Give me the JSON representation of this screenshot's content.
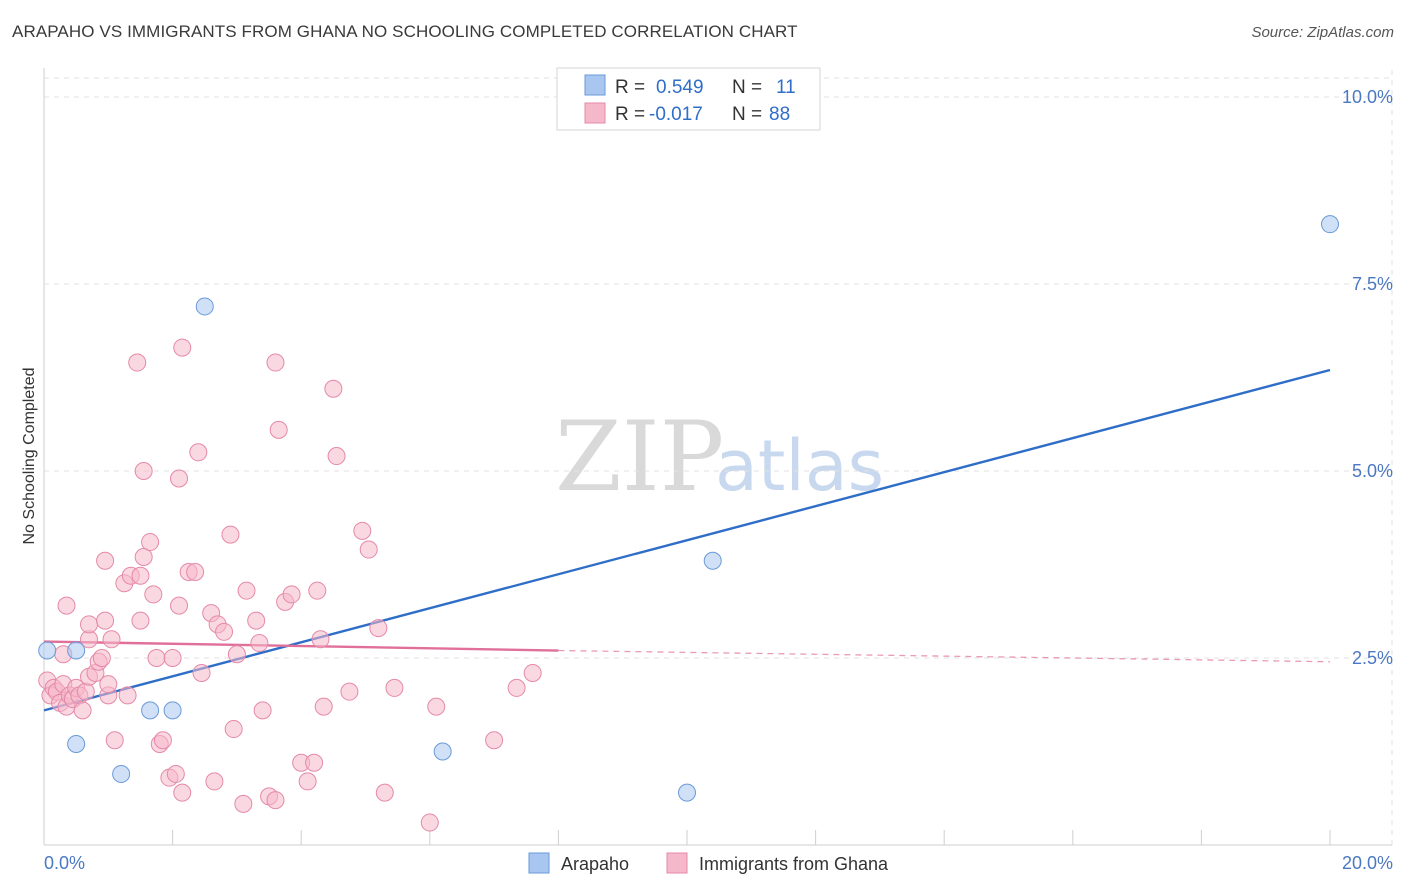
{
  "header": {
    "title": "ARAPAHO VS IMMIGRANTS FROM GHANA NO SCHOOLING COMPLETED CORRELATION CHART",
    "source": "Source: ZipAtlas.com"
  },
  "watermark": {
    "zip": "ZIP",
    "atlas": "atlas"
  },
  "legend_top": {
    "rows": [
      {
        "r_label": "R =",
        "r_value": "0.549",
        "n_label": "N =",
        "n_value": "11",
        "color": "#a9c6f0"
      },
      {
        "r_label": "R =",
        "r_value": "-0.017",
        "n_label": "N =",
        "n_value": "88",
        "color": "#f5b8cb"
      }
    ]
  },
  "legend_bottom": {
    "items": [
      "Arapaho",
      "Immigrants from Ghana"
    ]
  },
  "chart_data": {
    "type": "scatter",
    "title": "ARAPAHO VS IMMIGRANTS FROM GHANA NO SCHOOLING COMPLETED CORRELATION CHART",
    "xlabel": "",
    "ylabel": "No Schooling Completed",
    "xlim": [
      0,
      20
    ],
    "ylim": [
      0,
      10.5
    ],
    "x_tick_labels": [
      "0.0%",
      "20.0%"
    ],
    "y_ticks": [
      2.5,
      5.0,
      7.5,
      10.0
    ],
    "y_tick_labels": [
      "2.5%",
      "5.0%",
      "7.5%",
      "10.0%"
    ],
    "grid": true,
    "series": [
      {
        "name": "Arapaho",
        "color": "#a9c6f0",
        "stroke": "#6a9ad8",
        "trend_color": "#2f6ec8",
        "r": 0.549,
        "n": 11,
        "trend": {
          "x0": 0,
          "y0": 1.8,
          "x1": 20,
          "y1": 6.35
        },
        "points": [
          [
            0.05,
            2.6
          ],
          [
            0.5,
            2.6
          ],
          [
            0.5,
            1.35
          ],
          [
            1.2,
            0.95
          ],
          [
            1.65,
            1.8
          ],
          [
            2.0,
            1.8
          ],
          [
            2.5,
            7.2
          ],
          [
            6.2,
            1.25
          ],
          [
            10.4,
            3.8
          ],
          [
            10.0,
            0.7
          ],
          [
            20.0,
            8.3
          ]
        ]
      },
      {
        "name": "Immigrants from Ghana",
        "color": "#f5b8cb",
        "stroke": "#e589a8",
        "trend_color": "#e0709a",
        "r": -0.017,
        "n": 88,
        "trend": {
          "x0": 0,
          "y0": 2.72,
          "x1": 8,
          "y1": 2.6
        },
        "trend_dashed": {
          "x0": 8,
          "y0": 2.6,
          "x1": 20,
          "y1": 2.45
        },
        "points": [
          [
            0.05,
            2.2
          ],
          [
            0.1,
            2.0
          ],
          [
            0.15,
            2.1
          ],
          [
            0.2,
            2.05
          ],
          [
            0.25,
            1.9
          ],
          [
            0.3,
            2.15
          ],
          [
            0.35,
            1.85
          ],
          [
            0.4,
            2.0
          ],
          [
            0.45,
            1.95
          ],
          [
            0.5,
            2.1
          ],
          [
            0.55,
            2.0
          ],
          [
            0.6,
            1.8
          ],
          [
            0.65,
            2.05
          ],
          [
            0.7,
            2.25
          ],
          [
            0.8,
            2.3
          ],
          [
            0.85,
            2.45
          ],
          [
            0.9,
            2.5
          ],
          [
            1.0,
            2.0
          ],
          [
            1.05,
            2.75
          ],
          [
            1.1,
            1.4
          ],
          [
            0.35,
            3.2
          ],
          [
            0.7,
            2.75
          ],
          [
            0.7,
            2.95
          ],
          [
            0.95,
            3.0
          ],
          [
            0.95,
            3.8
          ],
          [
            1.25,
            3.5
          ],
          [
            1.3,
            2.0
          ],
          [
            1.35,
            3.6
          ],
          [
            1.5,
            3.0
          ],
          [
            1.5,
            3.6
          ],
          [
            1.55,
            3.85
          ],
          [
            1.65,
            4.05
          ],
          [
            1.7,
            3.35
          ],
          [
            1.75,
            2.5
          ],
          [
            1.8,
            1.35
          ],
          [
            1.85,
            1.4
          ],
          [
            1.95,
            0.9
          ],
          [
            2.0,
            2.5
          ],
          [
            2.05,
            0.95
          ],
          [
            2.1,
            3.2
          ],
          [
            2.15,
            0.7
          ],
          [
            2.25,
            3.65
          ],
          [
            2.35,
            3.65
          ],
          [
            2.45,
            2.3
          ],
          [
            2.6,
            3.1
          ],
          [
            2.65,
            0.85
          ],
          [
            2.7,
            2.95
          ],
          [
            2.8,
            2.85
          ],
          [
            2.9,
            4.15
          ],
          [
            2.95,
            1.55
          ],
          [
            3.0,
            2.55
          ],
          [
            3.1,
            0.55
          ],
          [
            3.15,
            3.4
          ],
          [
            3.3,
            3.0
          ],
          [
            3.35,
            2.7
          ],
          [
            3.4,
            1.8
          ],
          [
            3.5,
            0.65
          ],
          [
            3.6,
            0.6
          ],
          [
            3.65,
            5.55
          ],
          [
            3.75,
            3.25
          ],
          [
            3.85,
            3.35
          ],
          [
            4.0,
            1.1
          ],
          [
            4.1,
            0.85
          ],
          [
            4.2,
            1.1
          ],
          [
            4.25,
            3.4
          ],
          [
            4.3,
            2.75
          ],
          [
            4.35,
            1.85
          ],
          [
            4.5,
            6.1
          ],
          [
            4.55,
            5.2
          ],
          [
            4.75,
            2.05
          ],
          [
            4.95,
            4.2
          ],
          [
            5.05,
            3.95
          ],
          [
            5.2,
            2.9
          ],
          [
            5.3,
            0.7
          ],
          [
            5.45,
            2.1
          ],
          [
            6.0,
            0.3
          ],
          [
            6.1,
            1.85
          ],
          [
            7.0,
            1.4
          ],
          [
            7.35,
            2.1
          ],
          [
            7.6,
            2.3
          ],
          [
            1.45,
            6.45
          ],
          [
            2.15,
            6.65
          ],
          [
            3.6,
            6.45
          ],
          [
            2.4,
            5.25
          ],
          [
            2.1,
            4.9
          ],
          [
            1.55,
            5.0
          ],
          [
            1.0,
            2.15
          ],
          [
            0.3,
            2.55
          ]
        ]
      }
    ]
  }
}
